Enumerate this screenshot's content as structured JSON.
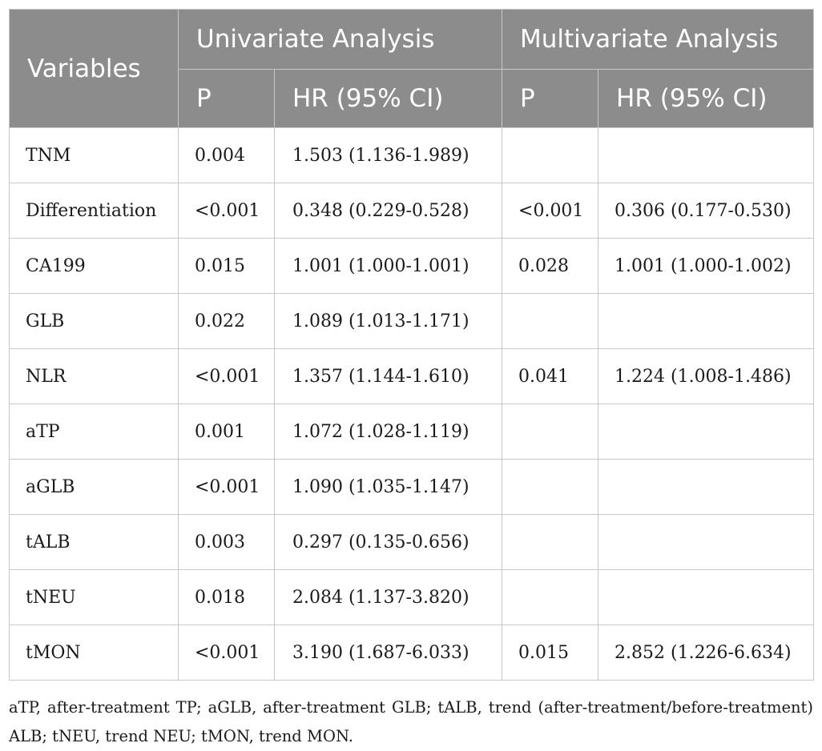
{
  "header": {
    "variables": "Variables",
    "univariate": "Univariate Analysis",
    "multivariate": "Multivariate Analysis",
    "p_uni": "P",
    "hr_uni": "HR (95% CI)",
    "p_multi": "P",
    "hr_multi": "HR (95% CI)"
  },
  "rows": [
    {
      "variable": "TNM",
      "uni_p": "0.004",
      "uni_hr": "1.503 (1.136-1.989)",
      "multi_p": "",
      "multi_hr": ""
    },
    {
      "variable": "Differentiation",
      "uni_p": "<0.001",
      "uni_hr": "0.348 (0.229-0.528)",
      "multi_p": "<0.001",
      "multi_hr": "0.306 (0.177-0.530)"
    },
    {
      "variable": "CA199",
      "uni_p": "0.015",
      "uni_hr": "1.001 (1.000-1.001)",
      "multi_p": "0.028",
      "multi_hr": "1.001 (1.000-1.002)"
    },
    {
      "variable": "GLB",
      "uni_p": "0.022",
      "uni_hr": "1.089 (1.013-1.171)",
      "multi_p": "",
      "multi_hr": ""
    },
    {
      "variable": "NLR",
      "uni_p": "<0.001",
      "uni_hr": "1.357 (1.144-1.610)",
      "multi_p": "0.041",
      "multi_hr": "1.224 (1.008-1.486)"
    },
    {
      "variable": "aTP",
      "uni_p": "0.001",
      "uni_hr": "1.072 (1.028-1.119)",
      "multi_p": "",
      "multi_hr": ""
    },
    {
      "variable": "aGLB",
      "uni_p": "<0.001",
      "uni_hr": "1.090 (1.035-1.147)",
      "multi_p": "",
      "multi_hr": ""
    },
    {
      "variable": "tALB",
      "uni_p": "0.003",
      "uni_hr": "0.297 (0.135-0.656)",
      "multi_p": "",
      "multi_hr": ""
    },
    {
      "variable": "tNEU",
      "uni_p": "0.018",
      "uni_hr": "2.084 (1.137-3.820)",
      "multi_p": "",
      "multi_hr": ""
    },
    {
      "variable": "tMON",
      "uni_p": "<0.001",
      "uni_hr": "3.190 (1.687-6.033)",
      "multi_p": "0.015",
      "multi_hr": "2.852 (1.226-6.634)"
    }
  ],
  "footnote": "aTP, after-treatment TP; aGLB, after-treatment GLB; tALB, trend (after-treatment/before-treatment) ALB; tNEU, trend NEU; tMON, trend MON."
}
